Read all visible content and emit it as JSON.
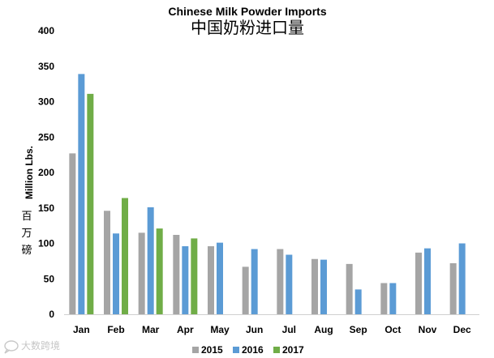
{
  "chart_data": {
    "type": "bar",
    "title": "Chinese Milk Powder Imports",
    "subtitle": "中国奶粉进口量",
    "ylabel": "Million Lbs.",
    "ylabel_cn": [
      "百",
      "万",
      "磅"
    ],
    "categories": [
      "Jan",
      "Feb",
      "Mar",
      "Apr",
      "May",
      "Jun",
      "Jul",
      "Aug",
      "Sep",
      "Oct",
      "Nov",
      "Dec"
    ],
    "ylim": [
      0,
      400
    ],
    "yticks": [
      0,
      50,
      100,
      150,
      200,
      250,
      300,
      350,
      400
    ],
    "grid": false,
    "legend_position": "bottom",
    "series": [
      {
        "name": "2015",
        "color": "#a5a5a5",
        "values": [
          227,
          146,
          115,
          112,
          96,
          67,
          92,
          78,
          71,
          44,
          87,
          72
        ]
      },
      {
        "name": "2016",
        "color": "#5b9bd5",
        "values": [
          339,
          114,
          151,
          96,
          101,
          92,
          84,
          77,
          35,
          44,
          93,
          100
        ]
      },
      {
        "name": "2017",
        "color": "#70ad47",
        "values": [
          311,
          164,
          121,
          107,
          null,
          null,
          null,
          null,
          null,
          null,
          null,
          null
        ]
      }
    ]
  },
  "watermark": {
    "text": "大数跨境",
    "icon": "chat-bubble-icon"
  }
}
